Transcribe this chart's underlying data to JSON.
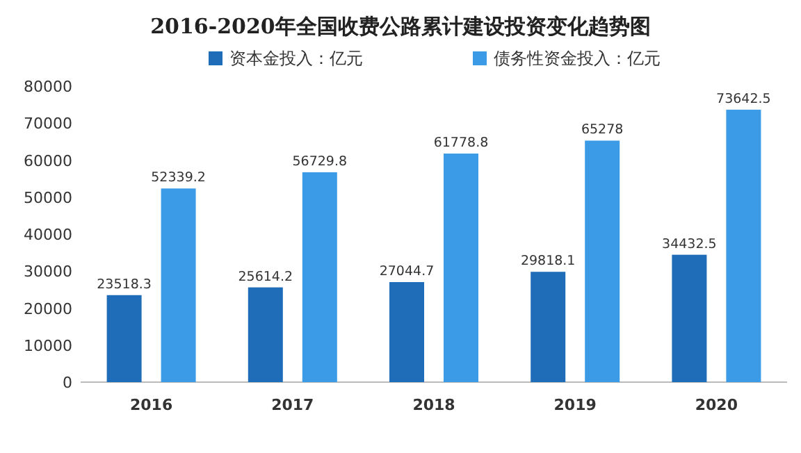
{
  "chart_data": {
    "type": "bar",
    "title": "2016-2020年全国收费公路累计建设投资变化趋势图",
    "categories": [
      "2016",
      "2017",
      "2018",
      "2019",
      "2020"
    ],
    "series": [
      {
        "name": "资本金投入：亿元",
        "color": "#1f6db8",
        "values": [
          23518.3,
          25614.2,
          27044.7,
          29818.1,
          34432.5
        ]
      },
      {
        "name": "债务性资金投入：亿元",
        "color": "#3b9be6",
        "values": [
          52339.2,
          56729.8,
          61778.8,
          65278,
          73642.5
        ]
      }
    ],
    "ylim": [
      0,
      80000
    ],
    "yticks": [
      0,
      10000,
      20000,
      30000,
      40000,
      50000,
      60000,
      70000,
      80000
    ],
    "data_labels": true,
    "legend": "top left"
  }
}
